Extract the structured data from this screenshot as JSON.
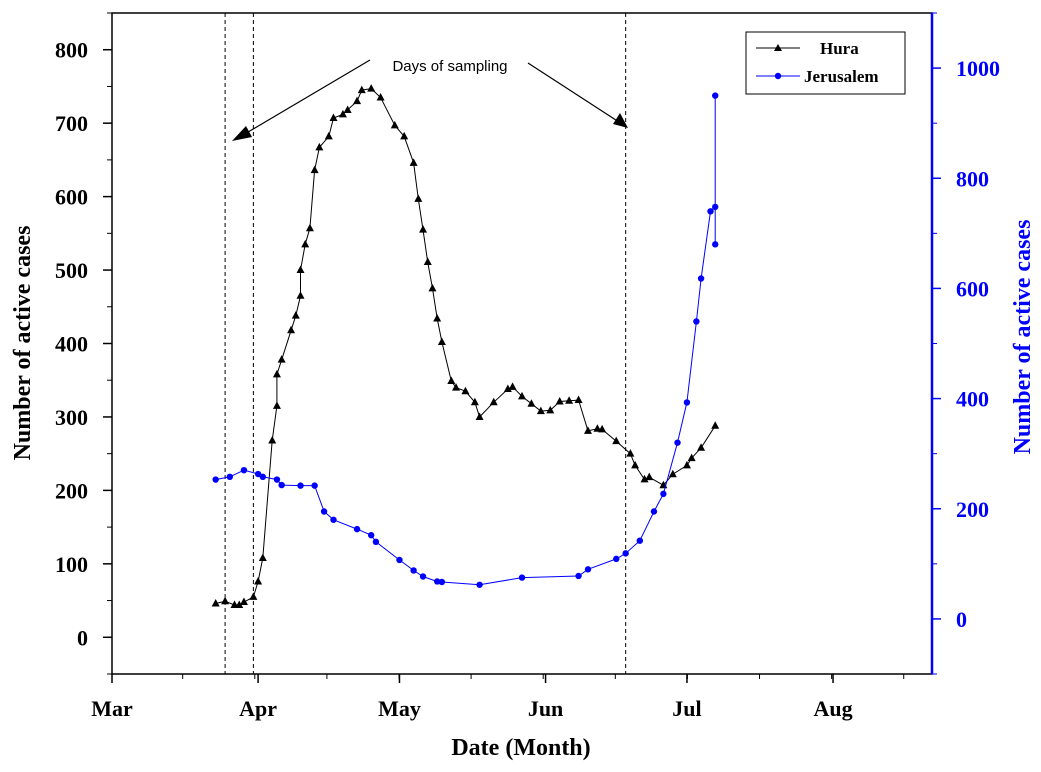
{
  "chart_data": {
    "type": "line",
    "xlabel": "Date (Month)",
    "ylabel_left": "Number of active cases",
    "ylabel_right": "Number of active cases",
    "x_ticks": [
      "Mar",
      "Apr",
      "May",
      "Jun",
      "Jul",
      "Aug"
    ],
    "x_tick_days": [
      0,
      31,
      61,
      92,
      122,
      153
    ],
    "xlim_days": [
      0,
      174
    ],
    "ylim_left": [
      -50,
      850
    ],
    "yticks_left": [
      "0",
      "100",
      "200",
      "300",
      "400",
      "500",
      "600",
      "700",
      "800"
    ],
    "ylim_right": [
      -100,
      1100
    ],
    "yticks_right": [
      "0",
      "200",
      "400",
      "600",
      "800",
      "1000"
    ],
    "right_axis_color": "#0000ff",
    "annotation": "Days of sampling",
    "sampling_dates": [
      "2020-03-25",
      "2020-03-31",
      "2020-06-18"
    ],
    "legend_position": "top-right",
    "series": [
      {
        "name": "Hura",
        "axis": "left",
        "color": "#000000",
        "marker": "triangle",
        "points": [
          [
            "2020-03-23",
            46
          ],
          [
            "2020-03-25",
            49
          ],
          [
            "2020-03-27",
            44
          ],
          [
            "2020-03-28",
            44
          ],
          [
            "2020-03-29",
            48
          ],
          [
            "2020-03-31",
            55
          ],
          [
            "2020-04-01",
            76
          ],
          [
            "2020-04-02",
            108
          ],
          [
            "2020-04-04",
            268
          ],
          [
            "2020-04-05",
            315
          ],
          [
            "2020-04-05",
            358
          ],
          [
            "2020-04-06",
            378
          ],
          [
            "2020-04-08",
            418
          ],
          [
            "2020-04-09",
            438
          ],
          [
            "2020-04-10",
            465
          ],
          [
            "2020-04-10",
            500
          ],
          [
            "2020-04-11",
            535
          ],
          [
            "2020-04-12",
            557
          ],
          [
            "2020-04-13",
            636
          ],
          [
            "2020-04-14",
            667
          ],
          [
            "2020-04-16",
            682
          ],
          [
            "2020-04-17",
            707
          ],
          [
            "2020-04-19",
            712
          ],
          [
            "2020-04-20",
            718
          ],
          [
            "2020-04-22",
            730
          ],
          [
            "2020-04-23",
            745
          ],
          [
            "2020-04-25",
            747
          ],
          [
            "2020-04-27",
            735
          ],
          [
            "2020-04-30",
            697
          ],
          [
            "2020-05-02",
            682
          ],
          [
            "2020-05-04",
            646
          ],
          [
            "2020-05-05",
            597
          ],
          [
            "2020-05-06",
            555
          ],
          [
            "2020-05-07",
            511
          ],
          [
            "2020-05-08",
            475
          ],
          [
            "2020-05-09",
            434
          ],
          [
            "2020-05-10",
            402
          ],
          [
            "2020-05-12",
            349
          ],
          [
            "2020-05-13",
            340
          ],
          [
            "2020-05-15",
            335
          ],
          [
            "2020-05-17",
            320
          ],
          [
            "2020-05-18",
            300
          ],
          [
            "2020-05-21",
            320
          ],
          [
            "2020-05-24",
            338
          ],
          [
            "2020-05-25",
            341
          ],
          [
            "2020-05-27",
            328
          ],
          [
            "2020-05-29",
            318
          ],
          [
            "2020-05-31",
            308
          ],
          [
            "2020-06-02",
            309
          ],
          [
            "2020-06-04",
            321
          ],
          [
            "2020-06-06",
            322
          ],
          [
            "2020-06-08",
            323
          ],
          [
            "2020-06-10",
            281
          ],
          [
            "2020-06-12",
            284
          ],
          [
            "2020-06-13",
            283
          ],
          [
            "2020-06-16",
            267
          ],
          [
            "2020-06-19",
            250
          ],
          [
            "2020-06-20",
            234
          ],
          [
            "2020-06-22",
            215
          ],
          [
            "2020-06-23",
            218
          ],
          [
            "2020-06-26",
            207
          ],
          [
            "2020-06-28",
            222
          ],
          [
            "2020-07-01",
            234
          ],
          [
            "2020-07-02",
            244
          ],
          [
            "2020-07-04",
            258
          ],
          [
            "2020-07-07",
            288
          ]
        ]
      },
      {
        "name": "Jerusalem",
        "axis": "right",
        "color": "#0000ff",
        "marker": "circle",
        "points": [
          [
            "2020-03-23",
            253
          ],
          [
            "2020-03-26",
            258
          ],
          [
            "2020-03-29",
            270
          ],
          [
            "2020-04-01",
            263
          ],
          [
            "2020-04-02",
            258
          ],
          [
            "2020-04-05",
            253
          ],
          [
            "2020-04-06",
            243
          ],
          [
            "2020-04-10",
            242
          ],
          [
            "2020-04-13",
            242
          ],
          [
            "2020-04-15",
            195
          ],
          [
            "2020-04-17",
            180
          ],
          [
            "2020-04-22",
            163
          ],
          [
            "2020-04-25",
            152
          ],
          [
            "2020-04-26",
            140
          ],
          [
            "2020-05-01",
            107
          ],
          [
            "2020-05-04",
            88
          ],
          [
            "2020-05-06",
            77
          ],
          [
            "2020-05-09",
            68
          ],
          [
            "2020-05-10",
            67
          ],
          [
            "2020-05-18",
            62
          ],
          [
            "2020-05-27",
            75
          ],
          [
            "2020-06-08",
            78
          ],
          [
            "2020-06-10",
            90
          ],
          [
            "2020-06-16",
            109
          ],
          [
            "2020-06-18",
            119
          ],
          [
            "2020-06-21",
            142
          ],
          [
            "2020-06-24",
            195
          ],
          [
            "2020-06-26",
            227
          ],
          [
            "2020-06-29",
            320
          ],
          [
            "2020-07-01",
            393
          ],
          [
            "2020-07-03",
            540
          ],
          [
            "2020-07-04",
            618
          ],
          [
            "2020-07-06",
            740
          ],
          [
            "2020-07-07",
            748
          ],
          [
            "2020-07-07",
            680
          ],
          [
            "2020-07-07",
            950
          ]
        ]
      }
    ]
  }
}
